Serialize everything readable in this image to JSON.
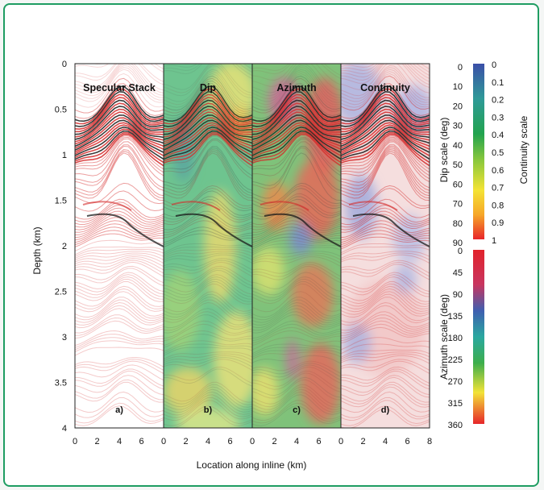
{
  "figure": {
    "panels": [
      {
        "title": "Specular Stack",
        "letter": "a)",
        "type": "stack"
      },
      {
        "title": "Dip",
        "letter": "b)",
        "type": "dip"
      },
      {
        "title": "Azimuth",
        "letter": "c)",
        "type": "azimuth"
      },
      {
        "title": "Continuity",
        "letter": "d)",
        "type": "continuity"
      }
    ],
    "y_axis": {
      "label": "Depth (km)",
      "ticks": [
        "0",
        "0.5",
        "1",
        "1.5",
        "2",
        "2.5",
        "3",
        "3.5",
        "4"
      ]
    },
    "x_axis": {
      "label": "Location along inline (km)",
      "panel_ticks": [
        [
          "0",
          "2",
          "4",
          "6"
        ],
        [
          "0",
          "2",
          "4",
          "6"
        ],
        [
          "0",
          "2",
          "4",
          "6"
        ],
        [
          "0",
          "2",
          "4",
          "6",
          "8"
        ]
      ]
    },
    "dip_scale": {
      "label": "Dip scale (deg)",
      "ticks": [
        "0",
        "10",
        "20",
        "30",
        "40",
        "50",
        "60",
        "70",
        "80",
        "90"
      ]
    },
    "continuity_scale": {
      "label": "Continuity scale",
      "ticks": [
        "0",
        "0.1",
        "0.2",
        "0.3",
        "0.4",
        "0.5",
        "0.6",
        "0.7",
        "0.8",
        "0.9",
        "1"
      ]
    },
    "azimuth_scale": {
      "label": "Azimuth scale (deg)",
      "ticks": [
        "0",
        "45",
        "90",
        "135",
        "180",
        "225",
        "270",
        "315",
        "360"
      ]
    },
    "colors": {
      "frame_border": "#1f9d62",
      "seismic_red": "#d42a2a",
      "seismic_black": "#1a1a1a",
      "dip_green": "#6ec48f",
      "dip_yellow": "#e6e27a",
      "azimuth_red": "#e0555a",
      "continuity_blue": "#9aa6d8"
    }
  }
}
